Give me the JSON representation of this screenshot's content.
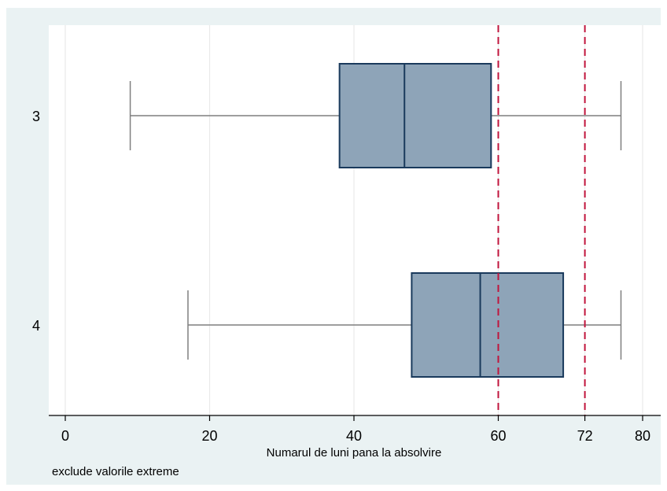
{
  "chart_data": {
    "type": "box",
    "orientation": "horizontal",
    "title": "",
    "xlabel": "Numarul de luni pana la absolvire",
    "note": "exclude valorile extreme",
    "xlim": [
      -2,
      82
    ],
    "x_ticks": [
      {
        "value": 0,
        "label": "0"
      },
      {
        "value": 20,
        "label": "20"
      },
      {
        "value": 40,
        "label": "40"
      },
      {
        "value": 60,
        "label": "60"
      },
      {
        "value": 72,
        "label": "72"
      },
      {
        "value": 80,
        "label": "80"
      }
    ],
    "grid": true,
    "categories": [
      "3",
      "4"
    ],
    "boxes": [
      {
        "category": "3",
        "whisker_low": 9,
        "q1": 38,
        "median": 47,
        "q3": 59,
        "whisker_high": 77
      },
      {
        "category": "4",
        "whisker_low": 17,
        "q1": 48,
        "median": 57.5,
        "q3": 69,
        "whisker_high": 77
      }
    ],
    "reference_lines": [
      {
        "value": 60,
        "style": "dashed",
        "color": "#c0143c"
      },
      {
        "value": 72,
        "style": "dashed",
        "color": "#c0143c"
      }
    ],
    "colors": {
      "outer_background": "#eaf2f3",
      "plot_background": "#ffffff",
      "box_fill": "#8ea4b8",
      "box_stroke": "#1a3a5c",
      "whisker": "#7f7f7f",
      "grid": "#eaeaea"
    }
  }
}
